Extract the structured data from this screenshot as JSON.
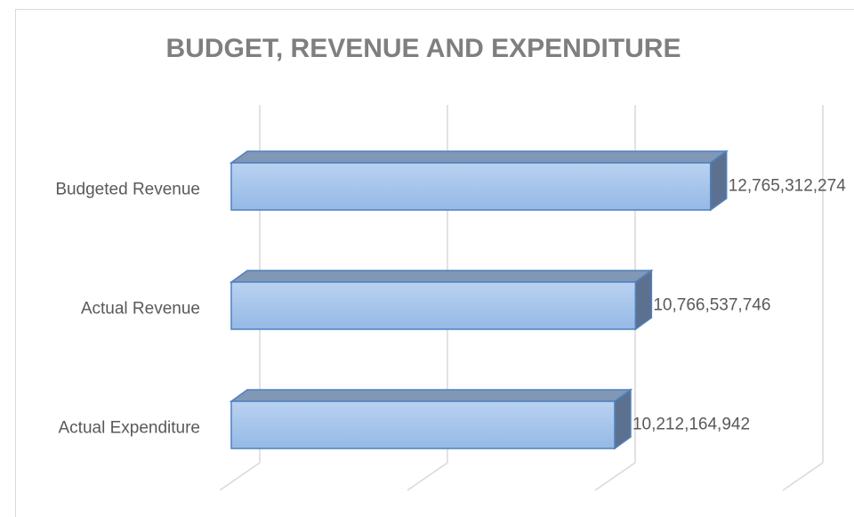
{
  "chart_data": {
    "type": "bar3d",
    "orientation": "horizontal",
    "title": "BUDGET, REVENUE AND EXPENDITURE",
    "categories": [
      "Budgeted Revenue",
      "Actual Revenue",
      "Actual Expenditure"
    ],
    "values": [
      12765312274,
      10766537746,
      10212164942
    ],
    "value_labels": [
      "12,765,312,274",
      "10,766,537,746",
      "10,212,164,942"
    ],
    "color": "#9fc1ea",
    "xlim": [
      0,
      15000000000
    ],
    "xticks": [
      0,
      5000000000,
      10000000000,
      15000000000
    ],
    "grid": true
  }
}
